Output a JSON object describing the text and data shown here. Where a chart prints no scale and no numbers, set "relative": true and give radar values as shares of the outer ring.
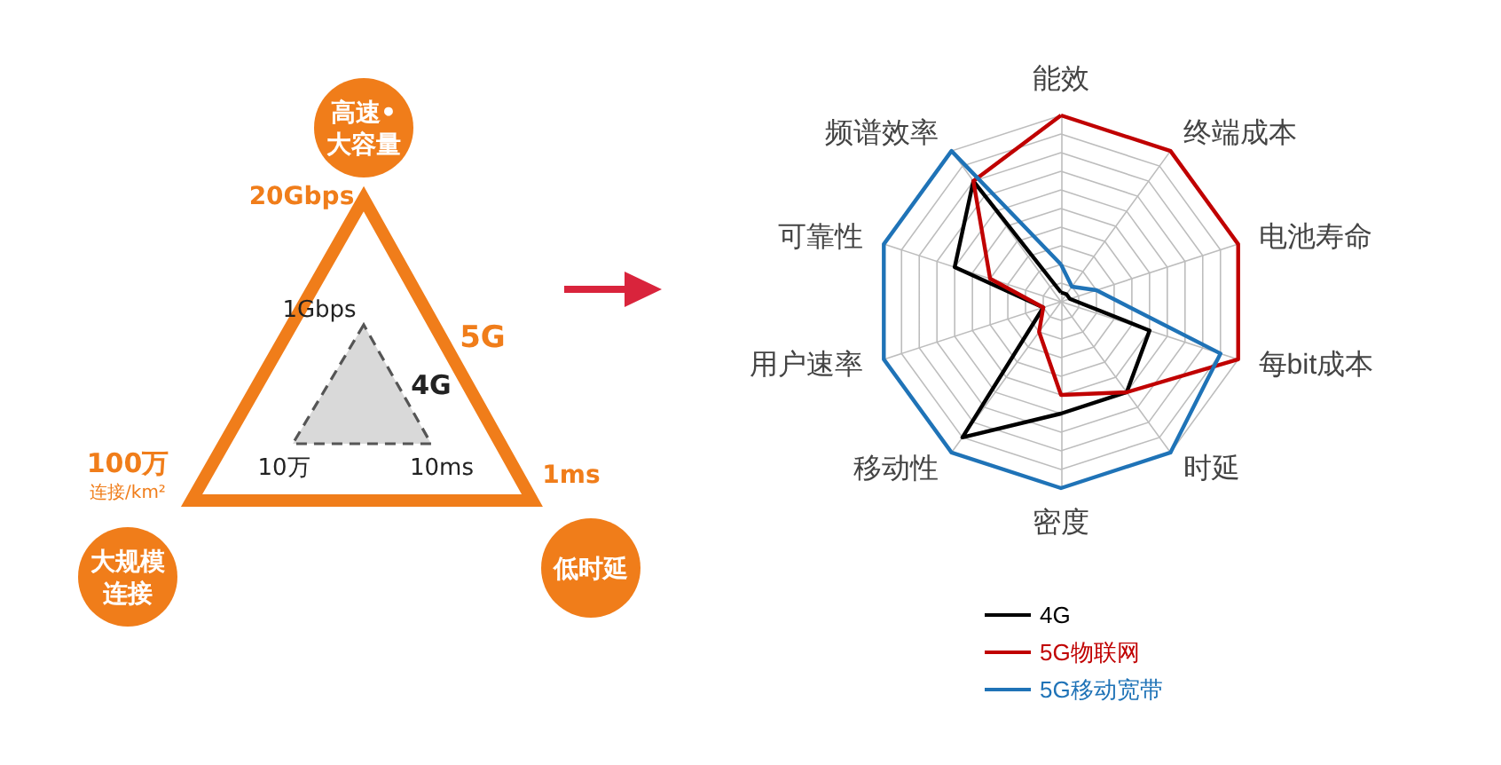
{
  "chart_data": [
    {
      "type": "other",
      "annotations": [
        "高速•大容量",
        "20Gbps",
        "5G",
        "1Gbps",
        "4G",
        "10万",
        "10ms",
        "100万",
        "连接/km²",
        "大规模连接",
        "1ms",
        "低时延"
      ]
    },
    {
      "type": "radar",
      "relative": true,
      "grid": true,
      "legend": "bottom",
      "categories": [
        "能效",
        "终端成本",
        "电池寿命",
        "每bit成本",
        "时延",
        "密度",
        "移动性",
        "用户速率",
        "可靠性",
        "频谱效率"
      ],
      "series": [
        {
          "name": "4G",
          "color": "#000000",
          "values": [
            0.05,
            0.05,
            0.05,
            0.5,
            0.6,
            0.6,
            0.9,
            0.1,
            0.6,
            0.8
          ]
        },
        {
          "name": "5G物联网",
          "color": "#c00000",
          "values": [
            1,
            1,
            1,
            1,
            0.6,
            0.5,
            0.2,
            0.1,
            0.4,
            0.8
          ]
        },
        {
          "name": "5G移动宽带",
          "color": "#1f73b7",
          "values": [
            0.2,
            0.1,
            0.2,
            0.9,
            1,
            1,
            1,
            1,
            1,
            1
          ]
        }
      ]
    }
  ]
}
